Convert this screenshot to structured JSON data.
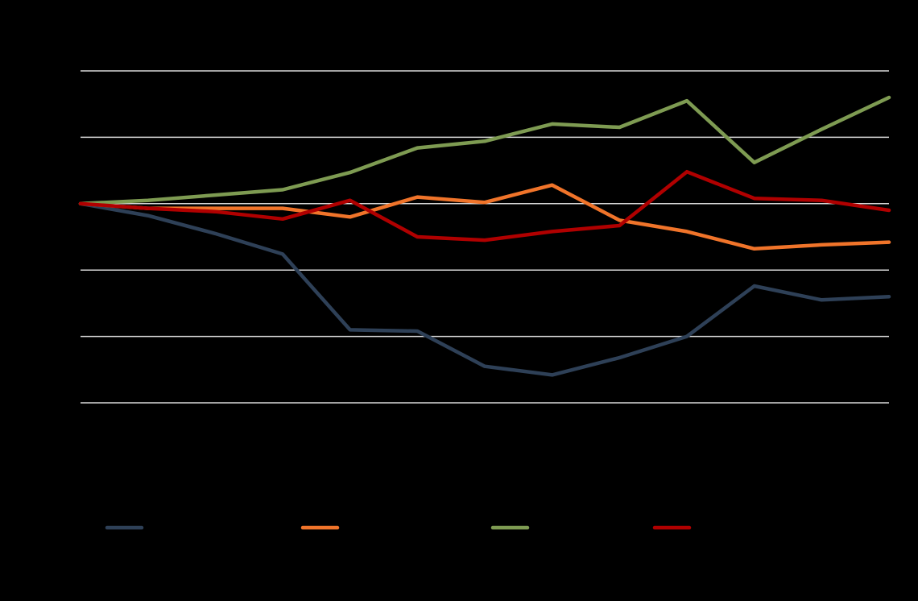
{
  "chart_data": {
    "type": "line",
    "title": "",
    "xlabel": "",
    "ylabel": "",
    "x": [
      0,
      1,
      2,
      3,
      4,
      5,
      6,
      7,
      8,
      9,
      10,
      11,
      12
    ],
    "ylim": [
      -3,
      2
    ],
    "gridlines": [
      2,
      1,
      0,
      -1,
      -2,
      -3
    ],
    "grid": true,
    "legend_position": "bottom",
    "series": [
      {
        "color": "#2E4057",
        "values": [
          0,
          -0.18,
          -0.45,
          -0.76,
          -1.9,
          -1.92,
          -2.45,
          -2.58,
          -2.32,
          -2.0,
          -1.24,
          -1.45,
          -1.4
        ]
      },
      {
        "color": "#F0742A",
        "values": [
          0,
          -0.07,
          -0.07,
          -0.07,
          -0.2,
          0.1,
          0.02,
          0.28,
          -0.25,
          -0.42,
          -0.68,
          -0.62,
          -0.58
        ]
      },
      {
        "color": "#7E9B52",
        "values": [
          0,
          0.05,
          0.13,
          0.21,
          0.47,
          0.84,
          0.94,
          1.2,
          1.15,
          1.55,
          0.62,
          1.12,
          1.6
        ]
      },
      {
        "color": "#B00000",
        "values": [
          0,
          -0.07,
          -0.12,
          -0.23,
          0.05,
          -0.5,
          -0.55,
          -0.42,
          -0.33,
          0.48,
          0.08,
          0.05,
          -0.1
        ]
      }
    ]
  }
}
